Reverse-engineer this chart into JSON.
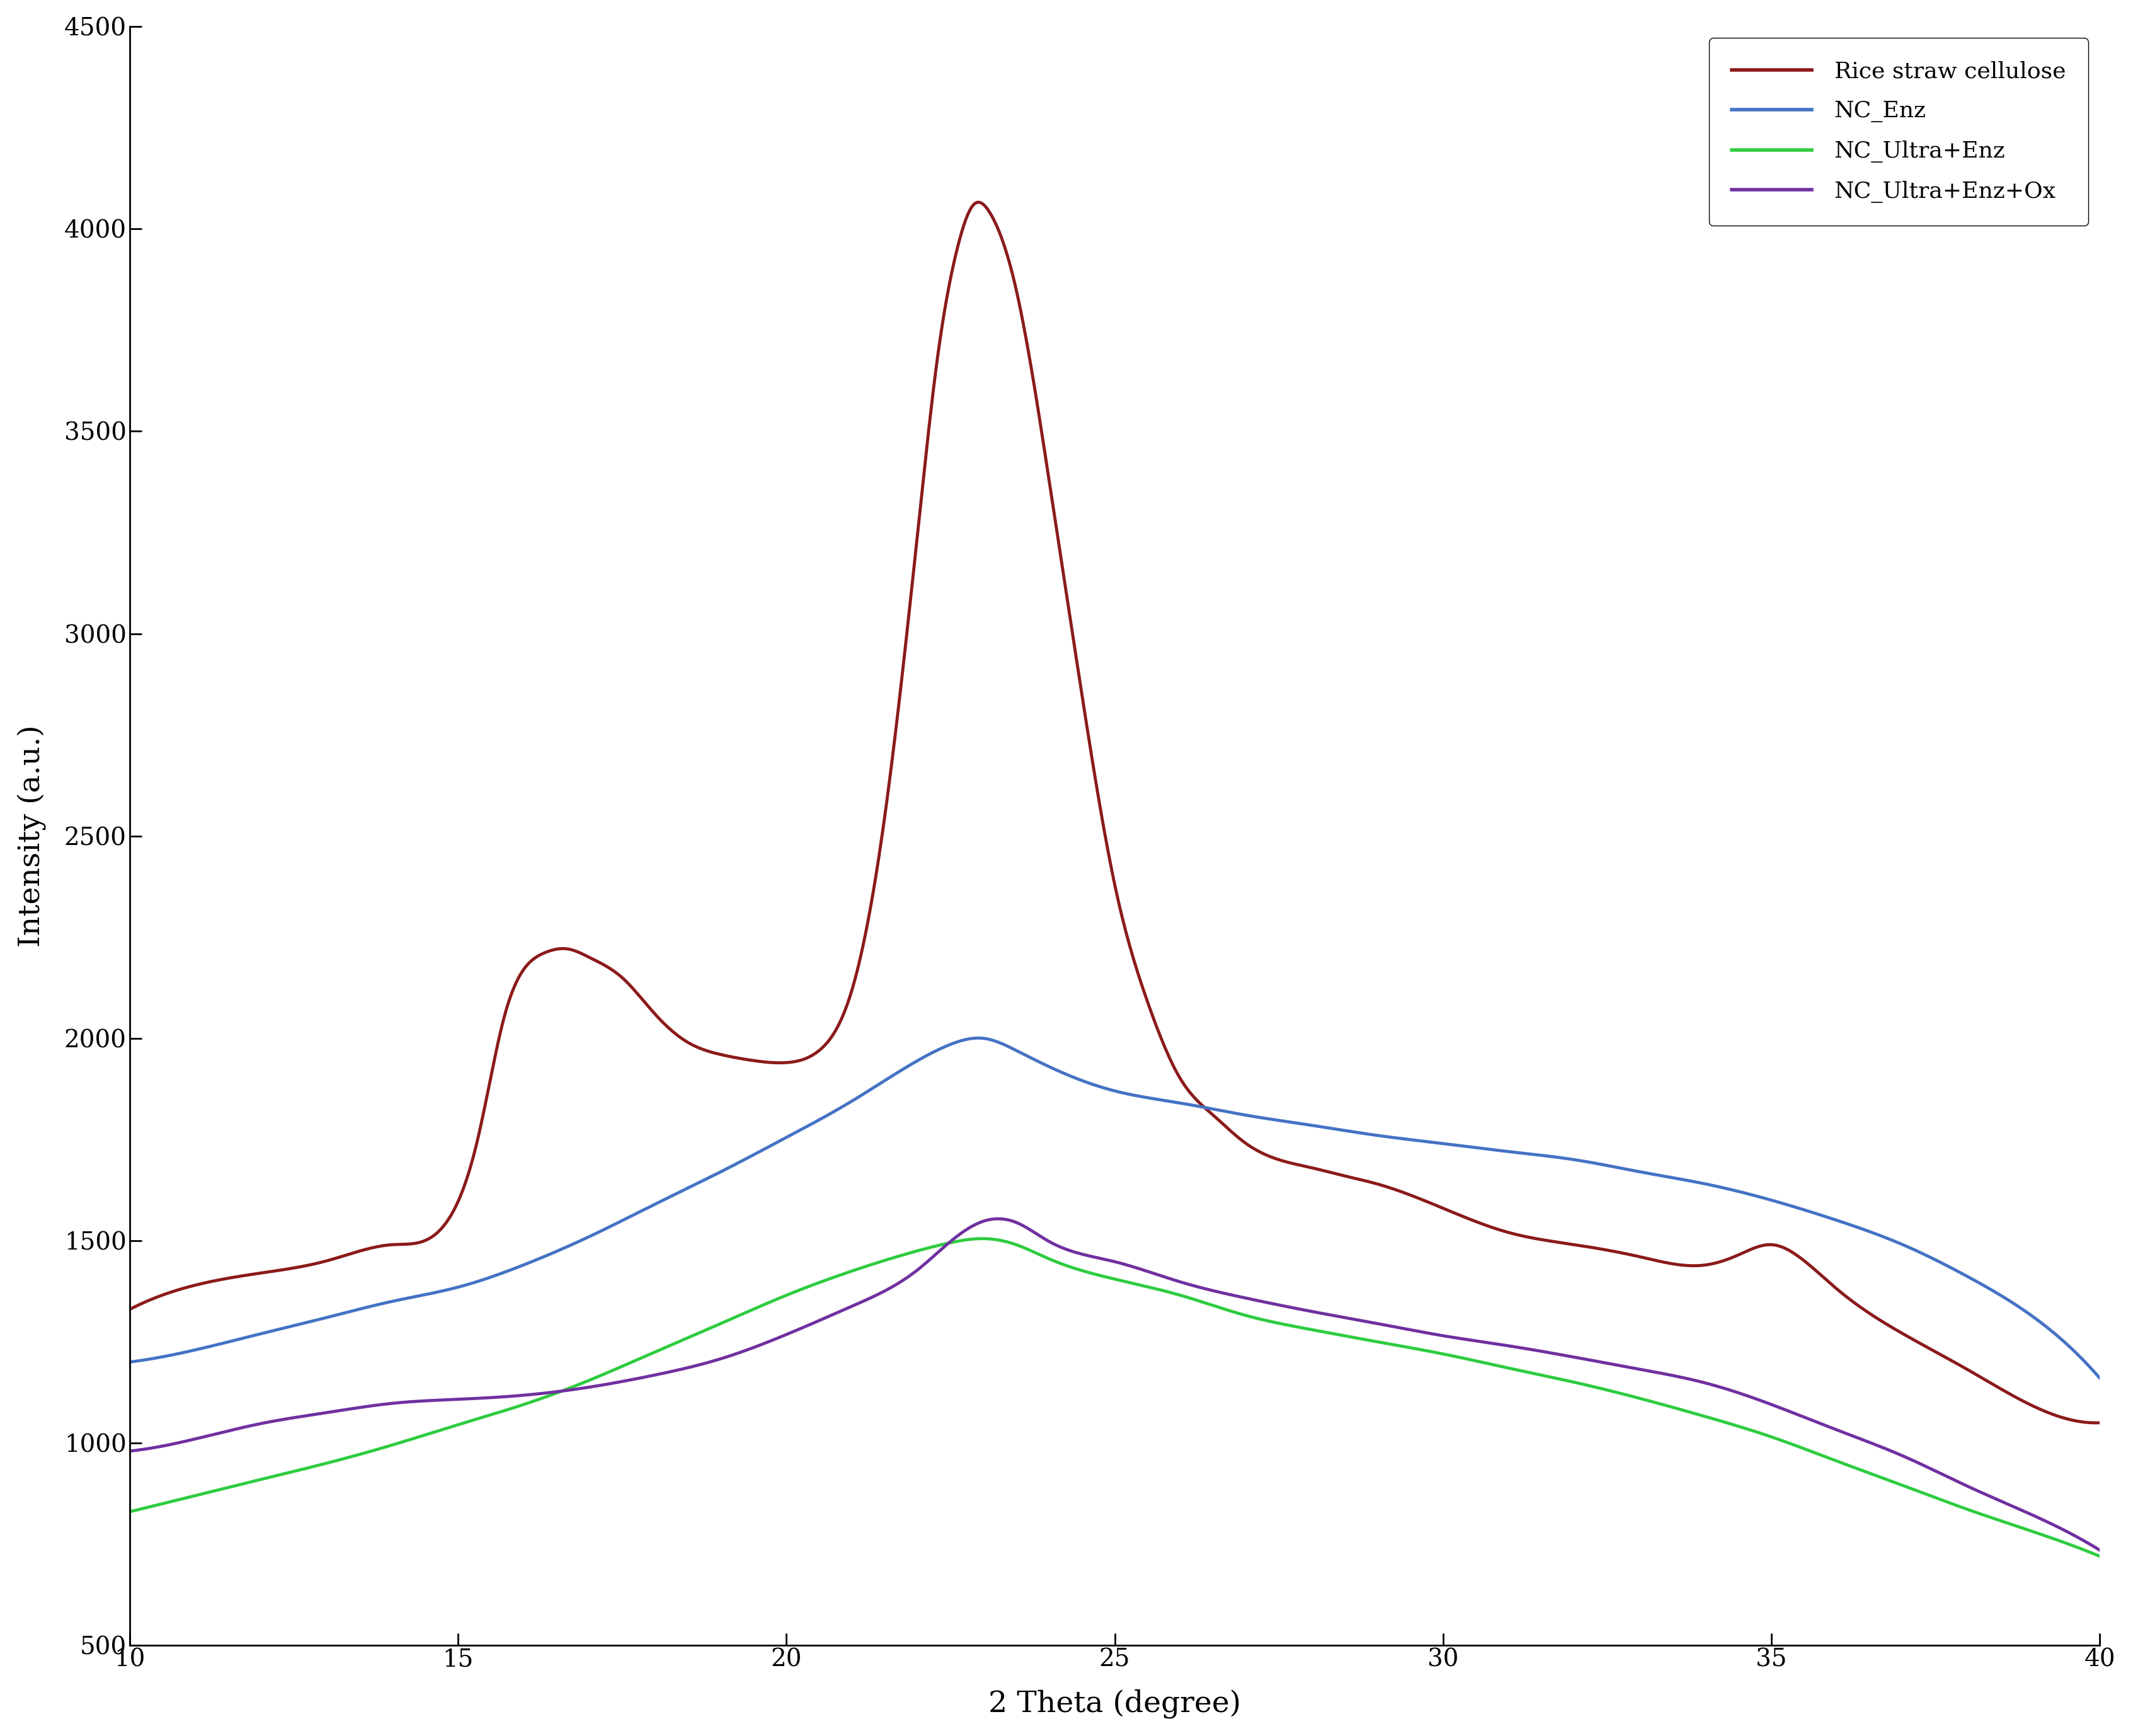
{
  "title": "",
  "xlabel": "2 Theta (degree)",
  "ylabel": "Intensity (a.u.)",
  "xlim": [
    10,
    40
  ],
  "ylim": [
    500,
    4500
  ],
  "xticks": [
    10,
    15,
    20,
    25,
    30,
    35,
    40
  ],
  "yticks": [
    500,
    1000,
    1500,
    2000,
    2500,
    3000,
    3500,
    4000,
    4500
  ],
  "background_color": "#ffffff",
  "line_width": 3.5,
  "series": [
    {
      "label": "Rice straw cellulose",
      "color": "#8B1A1A",
      "x": [
        10,
        11,
        12,
        13,
        14,
        14.8,
        15.3,
        15.7,
        16.0,
        16.3,
        16.7,
        17.0,
        17.5,
        18,
        18.5,
        19,
        19.5,
        20,
        20.5,
        21,
        21.5,
        22,
        22.3,
        22.6,
        22.85,
        23.1,
        23.5,
        24,
        24.5,
        25,
        25.5,
        26,
        26.5,
        27,
        27.5,
        28,
        28.5,
        29,
        30,
        31,
        32,
        33,
        34,
        34.5,
        35,
        35.5,
        36,
        37,
        38,
        39,
        40
      ],
      "y": [
        1330,
        1390,
        1420,
        1450,
        1490,
        1540,
        1750,
        2050,
        2170,
        2210,
        2220,
        2200,
        2150,
        2060,
        1990,
        1960,
        1945,
        1940,
        1970,
        2120,
        2550,
        3250,
        3680,
        3950,
        4060,
        4040,
        3850,
        3380,
        2850,
        2380,
        2090,
        1900,
        1810,
        1740,
        1700,
        1680,
        1660,
        1640,
        1580,
        1520,
        1490,
        1460,
        1440,
        1465,
        1490,
        1450,
        1380,
        1270,
        1180,
        1090,
        1050
      ]
    },
    {
      "label": "NC_Enz",
      "color": "#4472C4",
      "x": [
        10,
        11,
        12,
        13,
        14,
        15,
        16,
        17,
        18,
        19,
        20,
        21,
        22,
        22.5,
        23,
        23.5,
        24,
        25,
        26,
        27,
        28,
        29,
        30,
        31,
        32,
        33,
        34,
        35,
        36,
        37,
        38,
        39,
        40
      ],
      "y": [
        1200,
        1230,
        1270,
        1310,
        1350,
        1385,
        1440,
        1510,
        1590,
        1670,
        1755,
        1845,
        1945,
        1985,
        2000,
        1970,
        1930,
        1870,
        1840,
        1810,
        1785,
        1760,
        1740,
        1720,
        1700,
        1670,
        1640,
        1600,
        1550,
        1490,
        1410,
        1310,
        1160
      ]
    },
    {
      "label": "NC_Ultra+Enz",
      "color": "#2ECC40",
      "x": [
        10,
        11,
        12,
        13,
        14,
        15,
        16,
        17,
        18,
        19,
        20,
        21,
        22,
        22.5,
        23,
        23.5,
        24,
        25,
        26,
        27,
        28,
        29,
        30,
        31,
        32,
        33,
        34,
        35,
        36,
        37,
        38,
        39,
        40
      ],
      "y": [
        830,
        870,
        910,
        950,
        995,
        1045,
        1095,
        1155,
        1225,
        1295,
        1365,
        1425,
        1475,
        1495,
        1505,
        1490,
        1455,
        1405,
        1365,
        1315,
        1280,
        1250,
        1220,
        1185,
        1150,
        1110,
        1065,
        1015,
        955,
        895,
        835,
        780,
        720
      ]
    },
    {
      "label": "NC_Ultra+Enz+Ox",
      "color": "#7030A0",
      "x": [
        10,
        11,
        12,
        13,
        14,
        15,
        16,
        17,
        18,
        19,
        20,
        21,
        22,
        22.5,
        23,
        23.5,
        24,
        25,
        26,
        27,
        28,
        29,
        30,
        31,
        32,
        33,
        34,
        35,
        36,
        37,
        38,
        39,
        40
      ],
      "y": [
        980,
        1010,
        1048,
        1075,
        1098,
        1108,
        1118,
        1138,
        1168,
        1208,
        1268,
        1338,
        1428,
        1498,
        1548,
        1545,
        1498,
        1448,
        1398,
        1358,
        1325,
        1295,
        1265,
        1240,
        1212,
        1182,
        1148,
        1095,
        1032,
        968,
        892,
        820,
        735
      ]
    }
  ],
  "legend": {
    "loc": "upper right",
    "fontsize": 26,
    "frameon": true
  },
  "tick_fontsize": 28,
  "label_fontsize": 34
}
